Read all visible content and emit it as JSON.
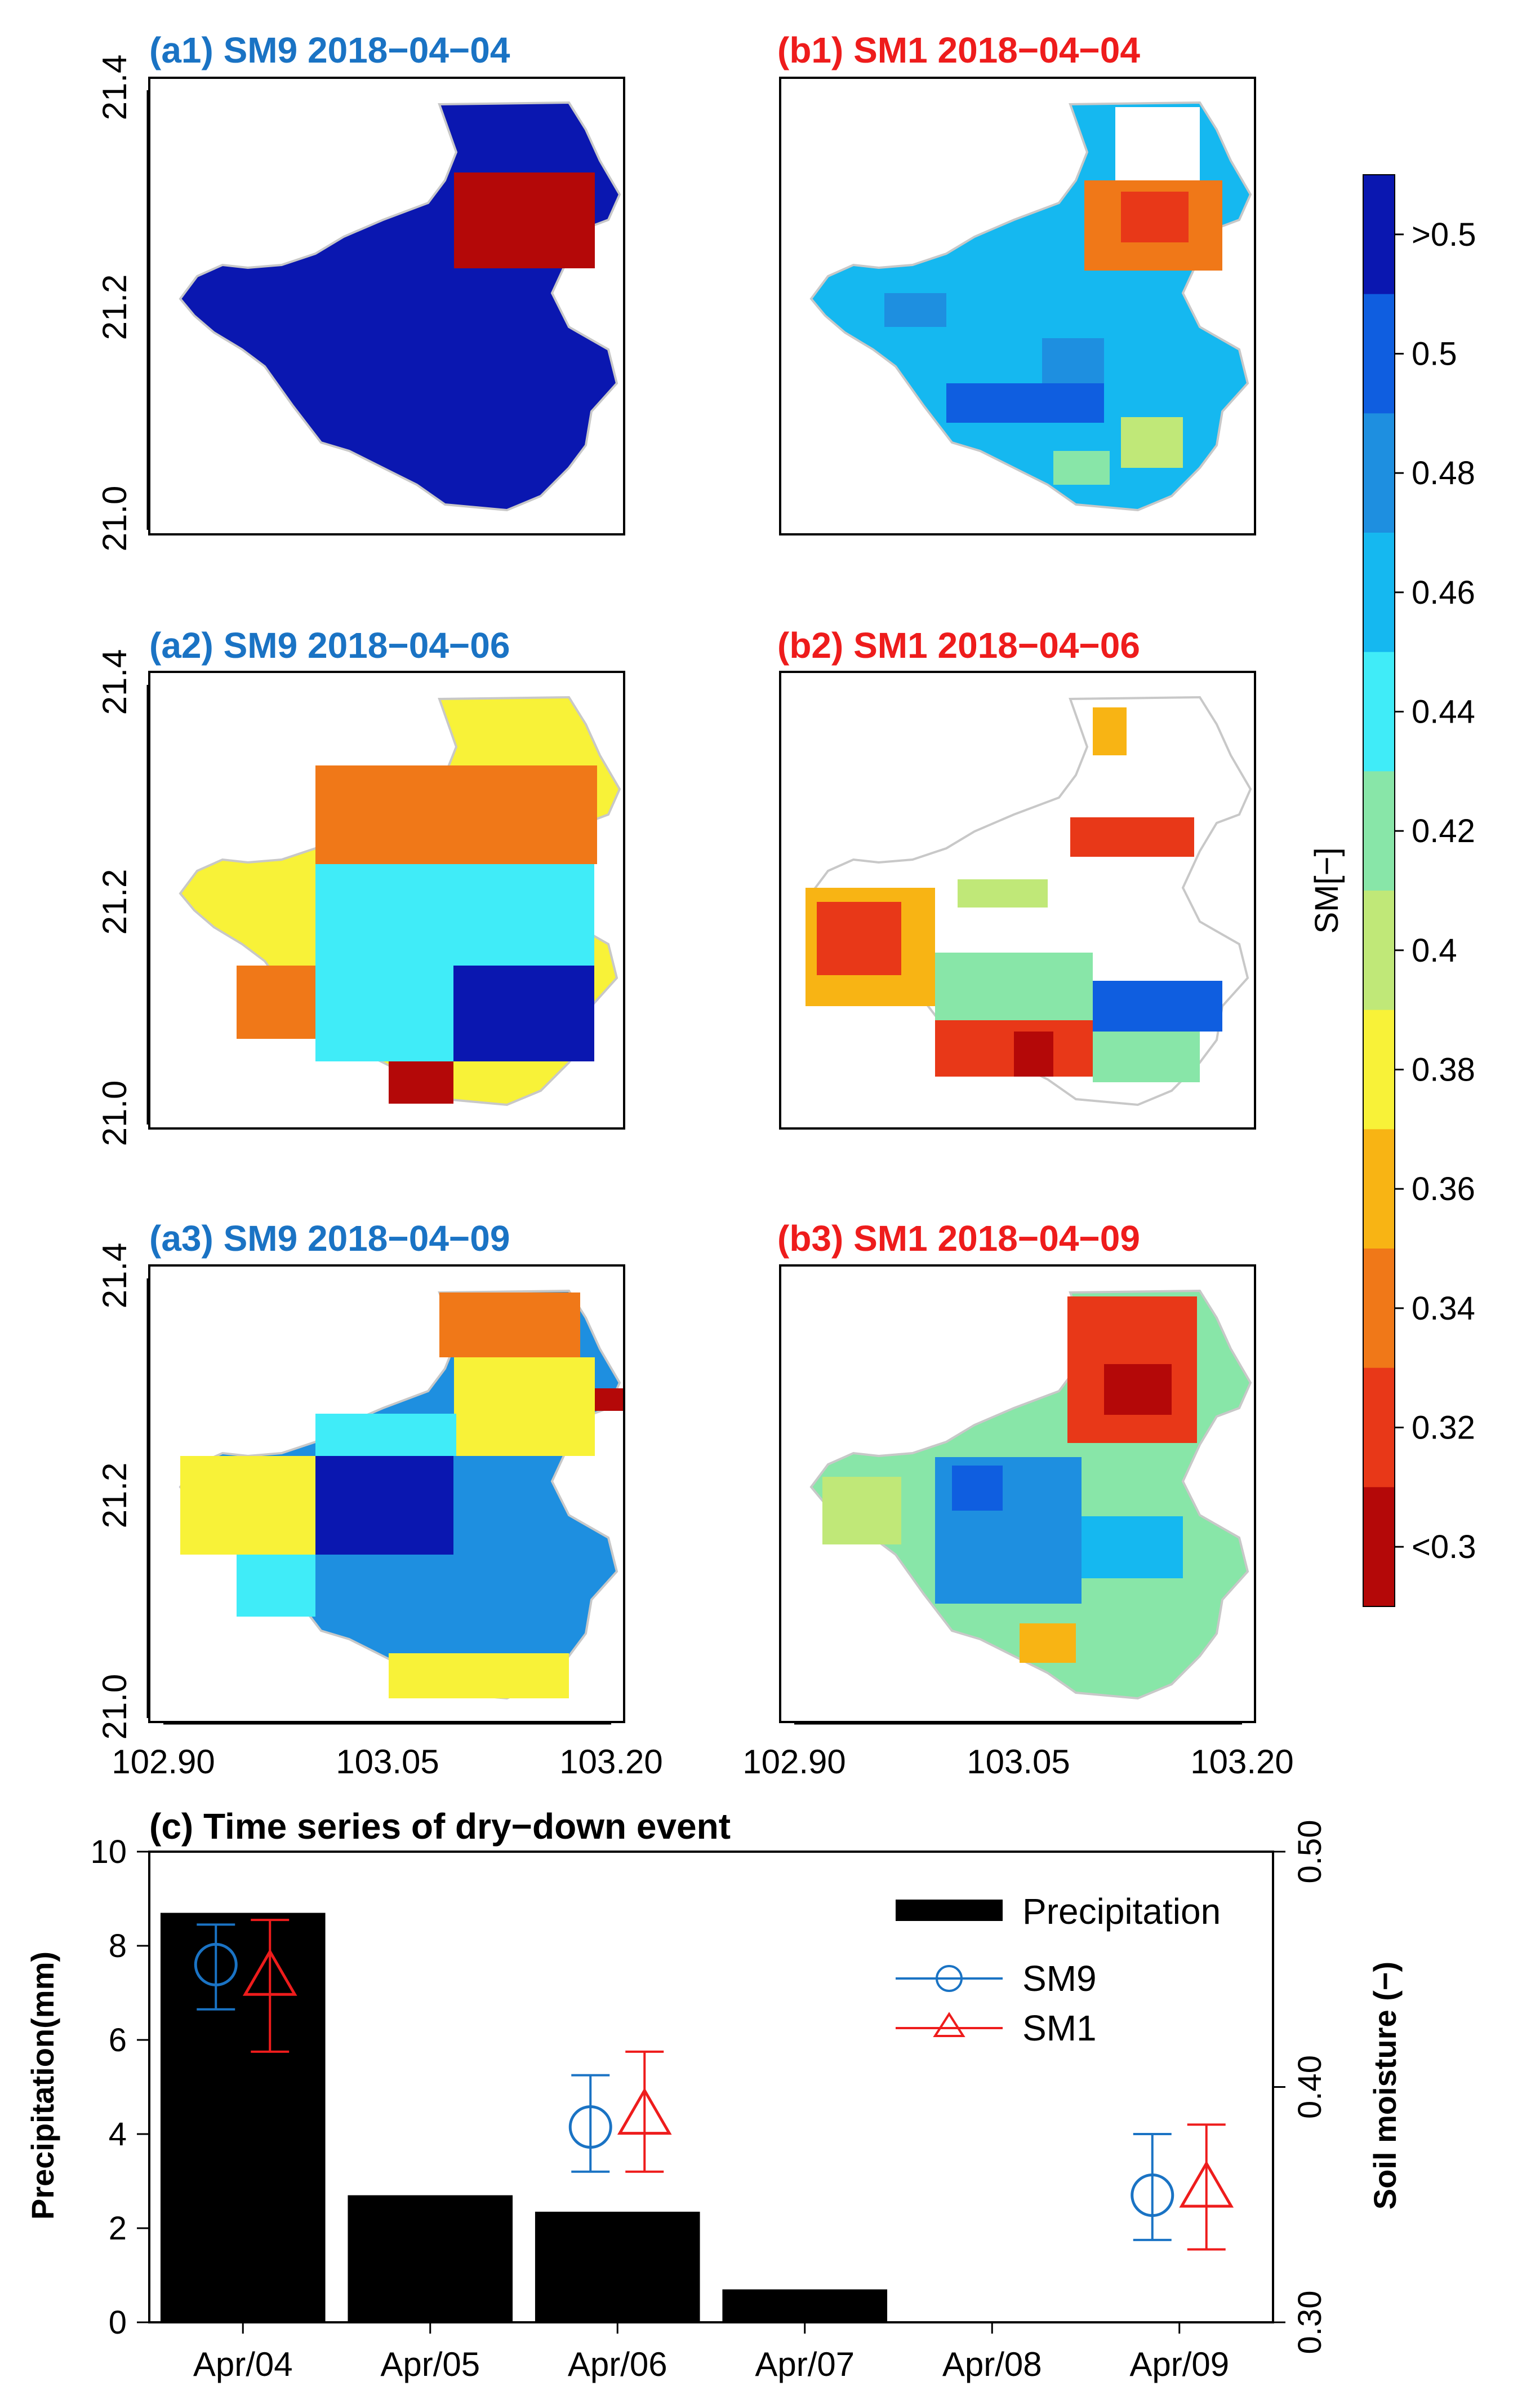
{
  "maps": {
    "panels": [
      {
        "id": "a1",
        "title": "(a1) SM9 2018−04−04",
        "color": "#1a73c4"
      },
      {
        "id": "b1",
        "title": "(b1) SM1 2018−04−04",
        "color": "#ee1c1c"
      },
      {
        "id": "a2",
        "title": "(a2) SM9 2018−04−06",
        "color": "#1a73c4"
      },
      {
        "id": "b2",
        "title": "(b2) SM1 2018−04−06",
        "color": "#ee1c1c"
      },
      {
        "id": "a3",
        "title": "(a3) SM9 2018−04−09",
        "color": "#1a73c4"
      },
      {
        "id": "b3",
        "title": "(b3) SM1 2018−04−09",
        "color": "#ee1c1c"
      }
    ],
    "lat_ticks": [
      "21.4",
      "21.2",
      "21.0"
    ],
    "lon_ticks": [
      "102.90",
      "103.05",
      "103.20"
    ]
  },
  "colorbar": {
    "label": "SM[−]",
    "labels": [
      ">0.5",
      "0.5",
      "0.48",
      "0.46",
      "0.44",
      "0.42",
      "0.4",
      "0.38",
      "0.36",
      "0.34",
      "0.32",
      "<0.3"
    ],
    "colors": [
      "#0a17b0",
      "#0f5ee0",
      "#1e8fe0",
      "#15b8f0",
      "#40ecf8",
      "#88e6a8",
      "#c0e878",
      "#f8f238",
      "#f8b414",
      "#f07818",
      "#e83818",
      "#b40808"
    ]
  },
  "chart_data": {
    "type": "bar",
    "title": "(c) Time series of dry−down event",
    "categories": [
      "Apr/04",
      "Apr/05",
      "Apr/06",
      "Apr/07",
      "Apr/08",
      "Apr/09"
    ],
    "series": [
      {
        "name": "Precipitation",
        "axis": "left",
        "values": [
          8.7,
          2.7,
          2.35,
          0.7,
          0,
          0
        ],
        "color": "#000000"
      },
      {
        "name": "SM9",
        "axis": "right",
        "marker": "circle",
        "color": "#1a73c4",
        "values": [
          0.452,
          null,
          0.383,
          null,
          null,
          0.354
        ],
        "err_low": [
          0.433,
          null,
          0.364,
          null,
          null,
          0.335
        ],
        "err_high": [
          0.469,
          null,
          0.405,
          null,
          null,
          0.38
        ]
      },
      {
        "name": "SM1",
        "axis": "right",
        "marker": "triangle",
        "color": "#ee1c1c",
        "values": [
          0.447,
          null,
          0.388,
          null,
          null,
          0.357
        ],
        "err_low": [
          0.415,
          null,
          0.364,
          null,
          null,
          0.331
        ],
        "err_high": [
          0.471,
          null,
          0.415,
          null,
          null,
          0.384
        ]
      }
    ],
    "ylabel": "Precipitation(mm)",
    "ylim": [
      0,
      10
    ],
    "yticks": [
      "0",
      "2",
      "4",
      "6",
      "8",
      "10"
    ],
    "y2label": "Soil moisture (−)",
    "y2lim": [
      0.3,
      0.5
    ],
    "y2ticks": [
      "0.30",
      "0.40",
      "0.50"
    ],
    "legend_position": "top-right",
    "legend": [
      "Precipitation",
      "SM9",
      "SM1"
    ]
  }
}
